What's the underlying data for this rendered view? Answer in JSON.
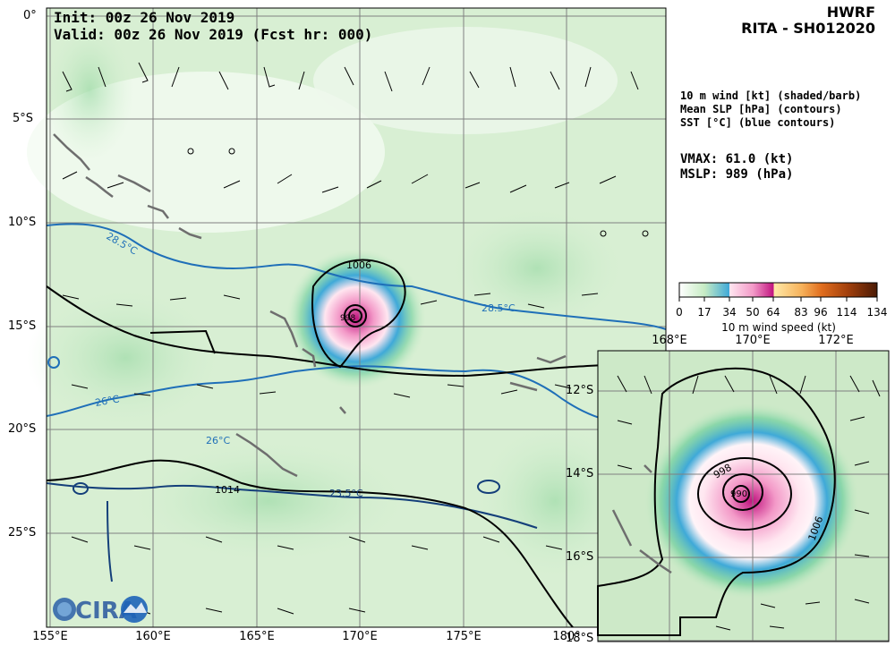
{
  "header": {
    "init": "Init:   00z 26 Nov 2019",
    "valid": "Valid: 00z 26 Nov 2019 (Fcst hr: 000)",
    "model": "HWRF",
    "storm": "RITA - SH012020"
  },
  "legend": {
    "wind": "10 m wind [kt] (shaded/barb)",
    "slp": "Mean SLP [hPa] (contours)",
    "sst": "SST [°C] (blue contours)"
  },
  "stats": {
    "vmax": "VMAX:  61.0 (kt)",
    "mslp": "MSLP:  989 (hPa)"
  },
  "colorbar": {
    "ticks": [
      "0",
      "17",
      "34",
      "50",
      "64",
      "83",
      "96",
      "114",
      "134"
    ],
    "label": "10 m wind speed (kt)",
    "colors": [
      "#ffffff",
      "#c7ecc4",
      "#6fcf9d",
      "#3fa9d8",
      "#ffe6f0",
      "#f39ac8",
      "#c1137f",
      "#ffe9a8",
      "#f6b15a",
      "#e06d1e",
      "#a3400c",
      "#4a1a05"
    ]
  },
  "main_map": {
    "lat_labels": [
      "0°",
      "5°S",
      "10°S",
      "15°S",
      "20°S",
      "25°S"
    ],
    "lon_labels": [
      "155°E",
      "160°E",
      "165°E",
      "170°E",
      "175°E",
      "180°"
    ],
    "sst_labels": [
      "28.5°C",
      "28.5°C",
      "26°C",
      "26°C",
      "23.5°C"
    ],
    "slp_labels": [
      "1006",
      "1014",
      "998"
    ]
  },
  "inset_map": {
    "lon_labels": [
      "168°E",
      "170°E",
      "172°E"
    ],
    "lat_labels": [
      "12°S",
      "14°S",
      "16°S",
      "18°S"
    ],
    "slp_labels": [
      "998",
      "990",
      "1006"
    ]
  },
  "logo": {
    "text": "CIRA"
  }
}
